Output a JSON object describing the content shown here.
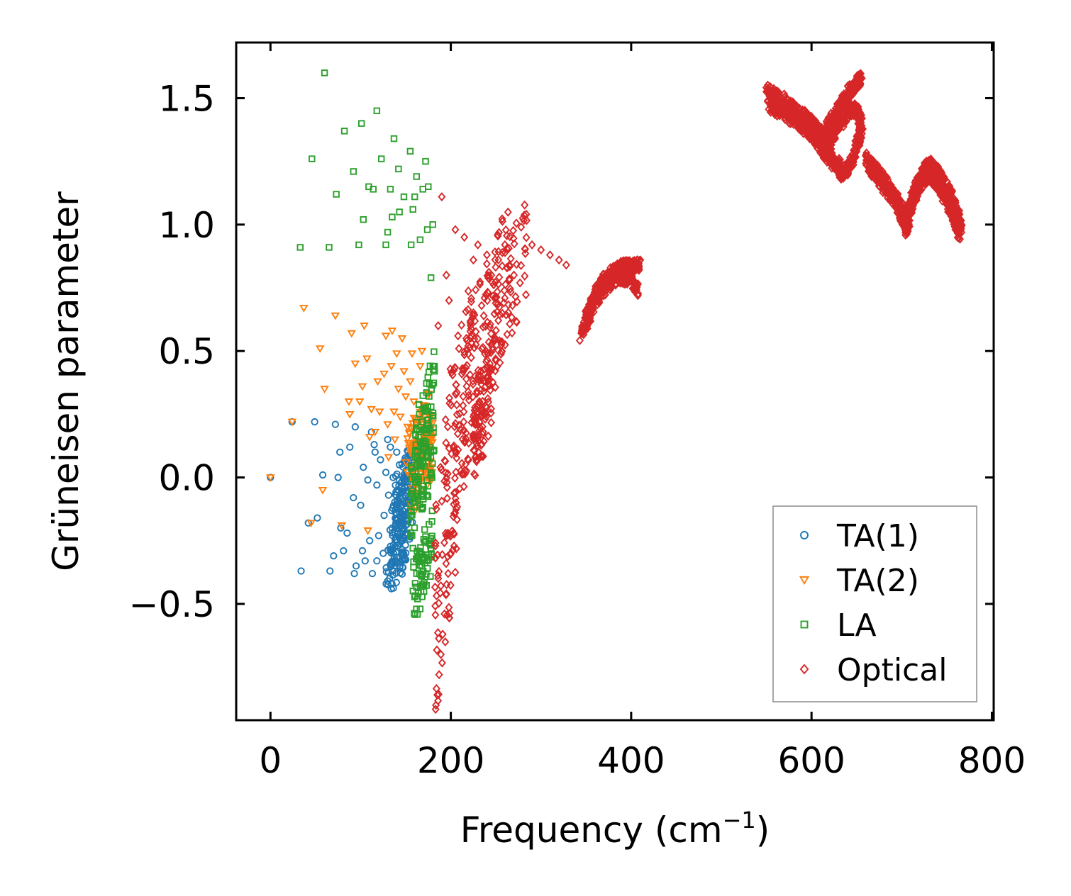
{
  "chart_data": {
    "type": "scatter",
    "title": "",
    "xlabel": "Frequency (cm",
    "xlabel_superscript": "−1",
    "xlabel_suffix": ")",
    "ylabel": "Grüneisen parameter",
    "xlim": [
      -38,
      802
    ],
    "ylim": [
      -0.96,
      1.72
    ],
    "xticks": [
      0,
      200,
      400,
      600,
      800
    ],
    "xtick_labels": [
      "0",
      "200",
      "400",
      "600",
      "800"
    ],
    "yticks": [
      -0.5,
      0.0,
      0.5,
      1.0,
      1.5
    ],
    "ytick_labels": [
      "−0.5",
      "0.0",
      "0.5",
      "1.0",
      "1.5"
    ],
    "grid": false,
    "legend_position": "lower-right",
    "series": [
      {
        "name": "TA(1)",
        "marker": "circle",
        "color": "#1f77b4",
        "points": [
          [
            0,
            0
          ],
          [
            24,
            0.22
          ],
          [
            34,
            -0.37
          ],
          [
            42,
            -0.18
          ],
          [
            49,
            0.22
          ],
          [
            52,
            -0.16
          ],
          [
            58,
            0.01
          ],
          [
            66,
            -0.37
          ],
          [
            70,
            -0.31
          ],
          [
            72,
            0.21
          ],
          [
            75,
            0
          ],
          [
            77,
            0.1
          ],
          [
            78,
            -0.2
          ],
          [
            81,
            -0.29
          ],
          [
            85,
            -0.22
          ],
          [
            88,
            0.12
          ],
          [
            92,
            -0.08
          ],
          [
            93,
            -0.38
          ],
          [
            94,
            0.2
          ],
          [
            95,
            -0.35
          ],
          [
            100,
            -0.11
          ],
          [
            102,
            -0.29
          ],
          [
            103,
            0.04
          ],
          [
            105,
            -0.33
          ],
          [
            108,
            -0.01
          ],
          [
            110,
            -0.25
          ],
          [
            112,
            0.18
          ],
          [
            113,
            -0.38
          ],
          [
            115,
            0.13
          ],
          [
            116,
            0.1
          ],
          [
            118,
            -0.03
          ],
          [
            118,
            -0.33
          ],
          [
            120,
            -0.23
          ],
          [
            122,
            0.07
          ],
          [
            125,
            -0.3
          ],
          [
            126,
            -0.15
          ],
          [
            128,
            0.02
          ],
          [
            130,
            -0.41
          ],
          [
            130,
            0.15
          ],
          [
            131,
            -0.07
          ],
          [
            133,
            0.12
          ],
          [
            134,
            -0.44
          ],
          [
            135,
            -0.2
          ],
          [
            136,
            0.0
          ],
          [
            138,
            -0.35
          ],
          [
            140,
            0.1
          ],
          [
            141,
            -0.27
          ],
          [
            142,
            -0.12
          ],
          [
            143,
            0.05
          ],
          [
            145,
            -0.02
          ],
          [
            146,
            -0.3
          ],
          [
            147,
            -0.08
          ],
          [
            148,
            -0.2
          ],
          [
            150,
            0.06
          ]
        ],
        "dense_regions": [
          {
            "x": [
              128,
              155
            ],
            "y0": -0.42,
            "y1": -0.2
          },
          {
            "x": [
              132,
              158
            ],
            "y0": -0.3,
            "y1": 0.0
          },
          {
            "x": [
              138,
              160
            ],
            "y0": -0.15,
            "y1": 0.1
          }
        ]
      },
      {
        "name": "TA(2)",
        "marker": "triangle-down",
        "color": "#ff7f0e",
        "points": [
          [
            0,
            0
          ],
          [
            24,
            0.22
          ],
          [
            37,
            0.67
          ],
          [
            45,
            -0.18
          ],
          [
            55,
            0.51
          ],
          [
            58,
            -0.05
          ],
          [
            60,
            0.35
          ],
          [
            72,
            0.64
          ],
          [
            79,
            -0.19
          ],
          [
            87,
            0.3
          ],
          [
            88,
            0.25
          ],
          [
            90,
            0.57
          ],
          [
            94,
            0.45
          ],
          [
            99,
            0.3
          ],
          [
            102,
            0.36
          ],
          [
            104,
            0.6
          ],
          [
            107,
            0.47
          ],
          [
            108,
            -0.21
          ],
          [
            110,
            0.16
          ],
          [
            112,
            0.27
          ],
          [
            116,
            0.18
          ],
          [
            119,
            0.38
          ],
          [
            121,
            0.26
          ],
          [
            126,
            0.41
          ],
          [
            128,
            0.56
          ],
          [
            130,
            0.21
          ],
          [
            131,
            0.08
          ],
          [
            134,
            0.44
          ],
          [
            135,
            0.58
          ],
          [
            137,
            0.26
          ],
          [
            138,
            0.15
          ],
          [
            140,
            0.49
          ],
          [
            142,
            0.35
          ],
          [
            144,
            0.24
          ],
          [
            146,
            0.55
          ],
          [
            148,
            0.42
          ],
          [
            150,
            0.32
          ],
          [
            152,
            0.2
          ],
          [
            155,
            0.38
          ],
          [
            157,
            0.49
          ],
          [
            159,
            0.3
          ],
          [
            161,
            0.12
          ],
          [
            164,
            0.22
          ],
          [
            166,
            0.44
          ],
          [
            168,
            0.5
          ],
          [
            170,
            0.27
          ]
        ],
        "dense_regions": [
          {
            "x": [
              150,
              178
            ],
            "y0": 0.05,
            "y1": 0.28
          },
          {
            "x": [
              155,
              180
            ],
            "y0": -0.1,
            "y1": 0.15
          }
        ]
      },
      {
        "name": "LA",
        "marker": "square",
        "color": "#2ca02c",
        "points": [
          [
            33,
            0.91
          ],
          [
            46,
            1.26
          ],
          [
            60,
            1.6
          ],
          [
            65,
            0.91
          ],
          [
            73,
            1.12
          ],
          [
            82,
            1.37
          ],
          [
            92,
            1.21
          ],
          [
            98,
            0.92
          ],
          [
            101,
            1.4
          ],
          [
            103,
            1.02
          ],
          [
            109,
            1.15
          ],
          [
            114,
            1.14
          ],
          [
            118,
            1.45
          ],
          [
            123,
            1.26
          ],
          [
            128,
            0.92
          ],
          [
            130,
            0.97
          ],
          [
            133,
            1.14
          ],
          [
            135,
            1.03
          ],
          [
            137,
            1.34
          ],
          [
            142,
            1.22
          ],
          [
            143,
            1.05
          ],
          [
            148,
            1.11
          ],
          [
            155,
            1.29
          ],
          [
            156,
            0.92
          ],
          [
            158,
            1.06
          ],
          [
            160,
            1.11
          ],
          [
            162,
            1.19
          ],
          [
            166,
            0.94
          ],
          [
            169,
            1.14
          ],
          [
            172,
            1.25
          ],
          [
            174,
            0.98
          ],
          [
            175,
            1.15
          ],
          [
            178,
            0.79
          ],
          [
            180,
            1.0
          ],
          [
            182,
            0.42
          ],
          [
            176,
            -0.26
          ],
          [
            170,
            -0.43
          ],
          [
            166,
            -0.52
          ],
          [
            162,
            -0.38
          ],
          [
            158,
            -0.28
          ]
        ],
        "dense_regions": [
          {
            "x": [
              155,
              182
            ],
            "y0": -0.15,
            "y1": 0.2
          },
          {
            "x": [
              160,
              182
            ],
            "y0": 0.0,
            "y1": 0.4
          },
          {
            "x": [
              158,
              180
            ],
            "y0": -0.5,
            "y1": -0.2
          }
        ]
      },
      {
        "name": "Optical",
        "marker": "diamond",
        "color": "#d62728",
        "points": [
          [
            190,
            1.11
          ],
          [
            205,
            0.98
          ],
          [
            215,
            0.95
          ],
          [
            225,
            0.86
          ],
          [
            230,
            0.92
          ],
          [
            240,
            0.88
          ],
          [
            245,
            0.8
          ],
          [
            252,
            0.96
          ],
          [
            260,
            0.92
          ],
          [
            265,
            0.84
          ],
          [
            270,
            0.8
          ],
          [
            278,
            0.99
          ],
          [
            290,
            0.92
          ],
          [
            300,
            0.9
          ],
          [
            310,
            0.88
          ],
          [
            320,
            0.86
          ],
          [
            328,
            0.84
          ],
          [
            185,
            -0.86
          ],
          [
            187,
            -0.78
          ],
          [
            189,
            -0.7
          ],
          [
            191,
            -0.62
          ],
          [
            193,
            -0.54
          ],
          [
            195,
            -0.46
          ],
          [
            197,
            -0.38
          ],
          [
            200,
            -0.3
          ],
          [
            203,
            -0.22
          ],
          [
            205,
            -0.14
          ],
          [
            186,
            0.6
          ],
          [
            195,
            0.8
          ],
          [
            198,
            0.7
          ],
          [
            208,
            0.56
          ],
          [
            232,
            0.08
          ],
          [
            236,
            0.18
          ]
        ],
        "dense_regions": [
          {
            "x": [
              182,
              208
            ],
            "y0": -0.7,
            "y1": 0.3
          },
          {
            "x": [
              190,
              225
            ],
            "y0": -0.2,
            "y1": 0.6
          },
          {
            "x": [
              205,
              250
            ],
            "y0": 0.1,
            "y1": 0.75
          },
          {
            "x": [
              220,
              265
            ],
            "y0": 0.3,
            "y1": 0.92
          },
          {
            "x": [
              240,
              285
            ],
            "y0": 0.5,
            "y1": 0.98
          },
          {
            "x": [
              225,
              245
            ],
            "y0": 0.05,
            "y1": 0.4
          }
        ],
        "curves": [
          [
            [
              345,
              0.56
            ],
            [
              352,
              0.65
            ],
            [
              360,
              0.72
            ],
            [
              370,
              0.78
            ],
            [
              380,
              0.81
            ],
            [
              390,
              0.83
            ],
            [
              400,
              0.84
            ],
            [
              410,
              0.84
            ]
          ],
          [
            [
              350,
              0.6
            ],
            [
              360,
              0.7
            ],
            [
              372,
              0.76
            ],
            [
              385,
              0.79
            ],
            [
              398,
              0.79
            ],
            [
              408,
              0.74
            ]
          ],
          [
            [
              550,
              1.53
            ],
            [
              565,
              1.5
            ],
            [
              580,
              1.46
            ],
            [
              595,
              1.42
            ],
            [
              605,
              1.38
            ],
            [
              612,
              1.35
            ],
            [
              620,
              1.28
            ],
            [
              625,
              1.24
            ]
          ],
          [
            [
              553,
              1.47
            ],
            [
              568,
              1.44
            ],
            [
              583,
              1.41
            ],
            [
              598,
              1.36
            ],
            [
              610,
              1.32
            ],
            [
              618,
              1.26
            ]
          ],
          [
            [
              612,
              1.33
            ],
            [
              620,
              1.4
            ],
            [
              630,
              1.46
            ],
            [
              640,
              1.52
            ],
            [
              650,
              1.56
            ],
            [
              655,
              1.58
            ]
          ],
          [
            [
              615,
              1.28
            ],
            [
              625,
              1.36
            ],
            [
              635,
              1.42
            ],
            [
              645,
              1.46
            ],
            [
              652,
              1.44
            ],
            [
              655,
              1.38
            ],
            [
              650,
              1.3
            ],
            [
              640,
              1.22
            ],
            [
              632,
              1.2
            ],
            [
              630,
              1.24
            ]
          ],
          [
            [
              660,
              1.26
            ],
            [
              670,
              1.22
            ],
            [
              680,
              1.18
            ],
            [
              690,
              1.12
            ],
            [
              698,
              1.08
            ],
            [
              703,
              1.04
            ],
            [
              708,
              0.99
            ]
          ],
          [
            [
              665,
              1.22
            ],
            [
              675,
              1.18
            ],
            [
              685,
              1.13
            ],
            [
              695,
              1.08
            ],
            [
              702,
              1.02
            ],
            [
              706,
              0.98
            ]
          ],
          [
            [
              704,
              1.0
            ],
            [
              710,
              1.08
            ],
            [
              718,
              1.16
            ],
            [
              726,
              1.22
            ],
            [
              732,
              1.24
            ],
            [
              742,
              1.2
            ],
            [
              752,
              1.14
            ],
            [
              760,
              1.06
            ],
            [
              766,
              0.98
            ]
          ],
          [
            [
              706,
              1.04
            ],
            [
              715,
              1.12
            ],
            [
              724,
              1.18
            ],
            [
              732,
              1.2
            ],
            [
              740,
              1.16
            ],
            [
              750,
              1.1
            ],
            [
              758,
              1.02
            ],
            [
              764,
              0.96
            ]
          ]
        ]
      }
    ]
  }
}
